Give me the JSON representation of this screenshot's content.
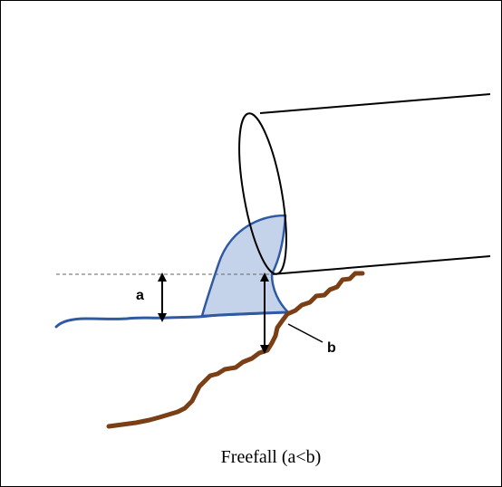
{
  "diagram": {
    "caption": "Freefall (a<b)",
    "label_a": "a",
    "label_b": "b",
    "colors": {
      "outline": "#000000",
      "water_fill": "#c5d3ea",
      "water_line": "#2e5aa4",
      "ground": "#7b3f16",
      "reference_line": "#666666",
      "frame": "#000000"
    }
  }
}
